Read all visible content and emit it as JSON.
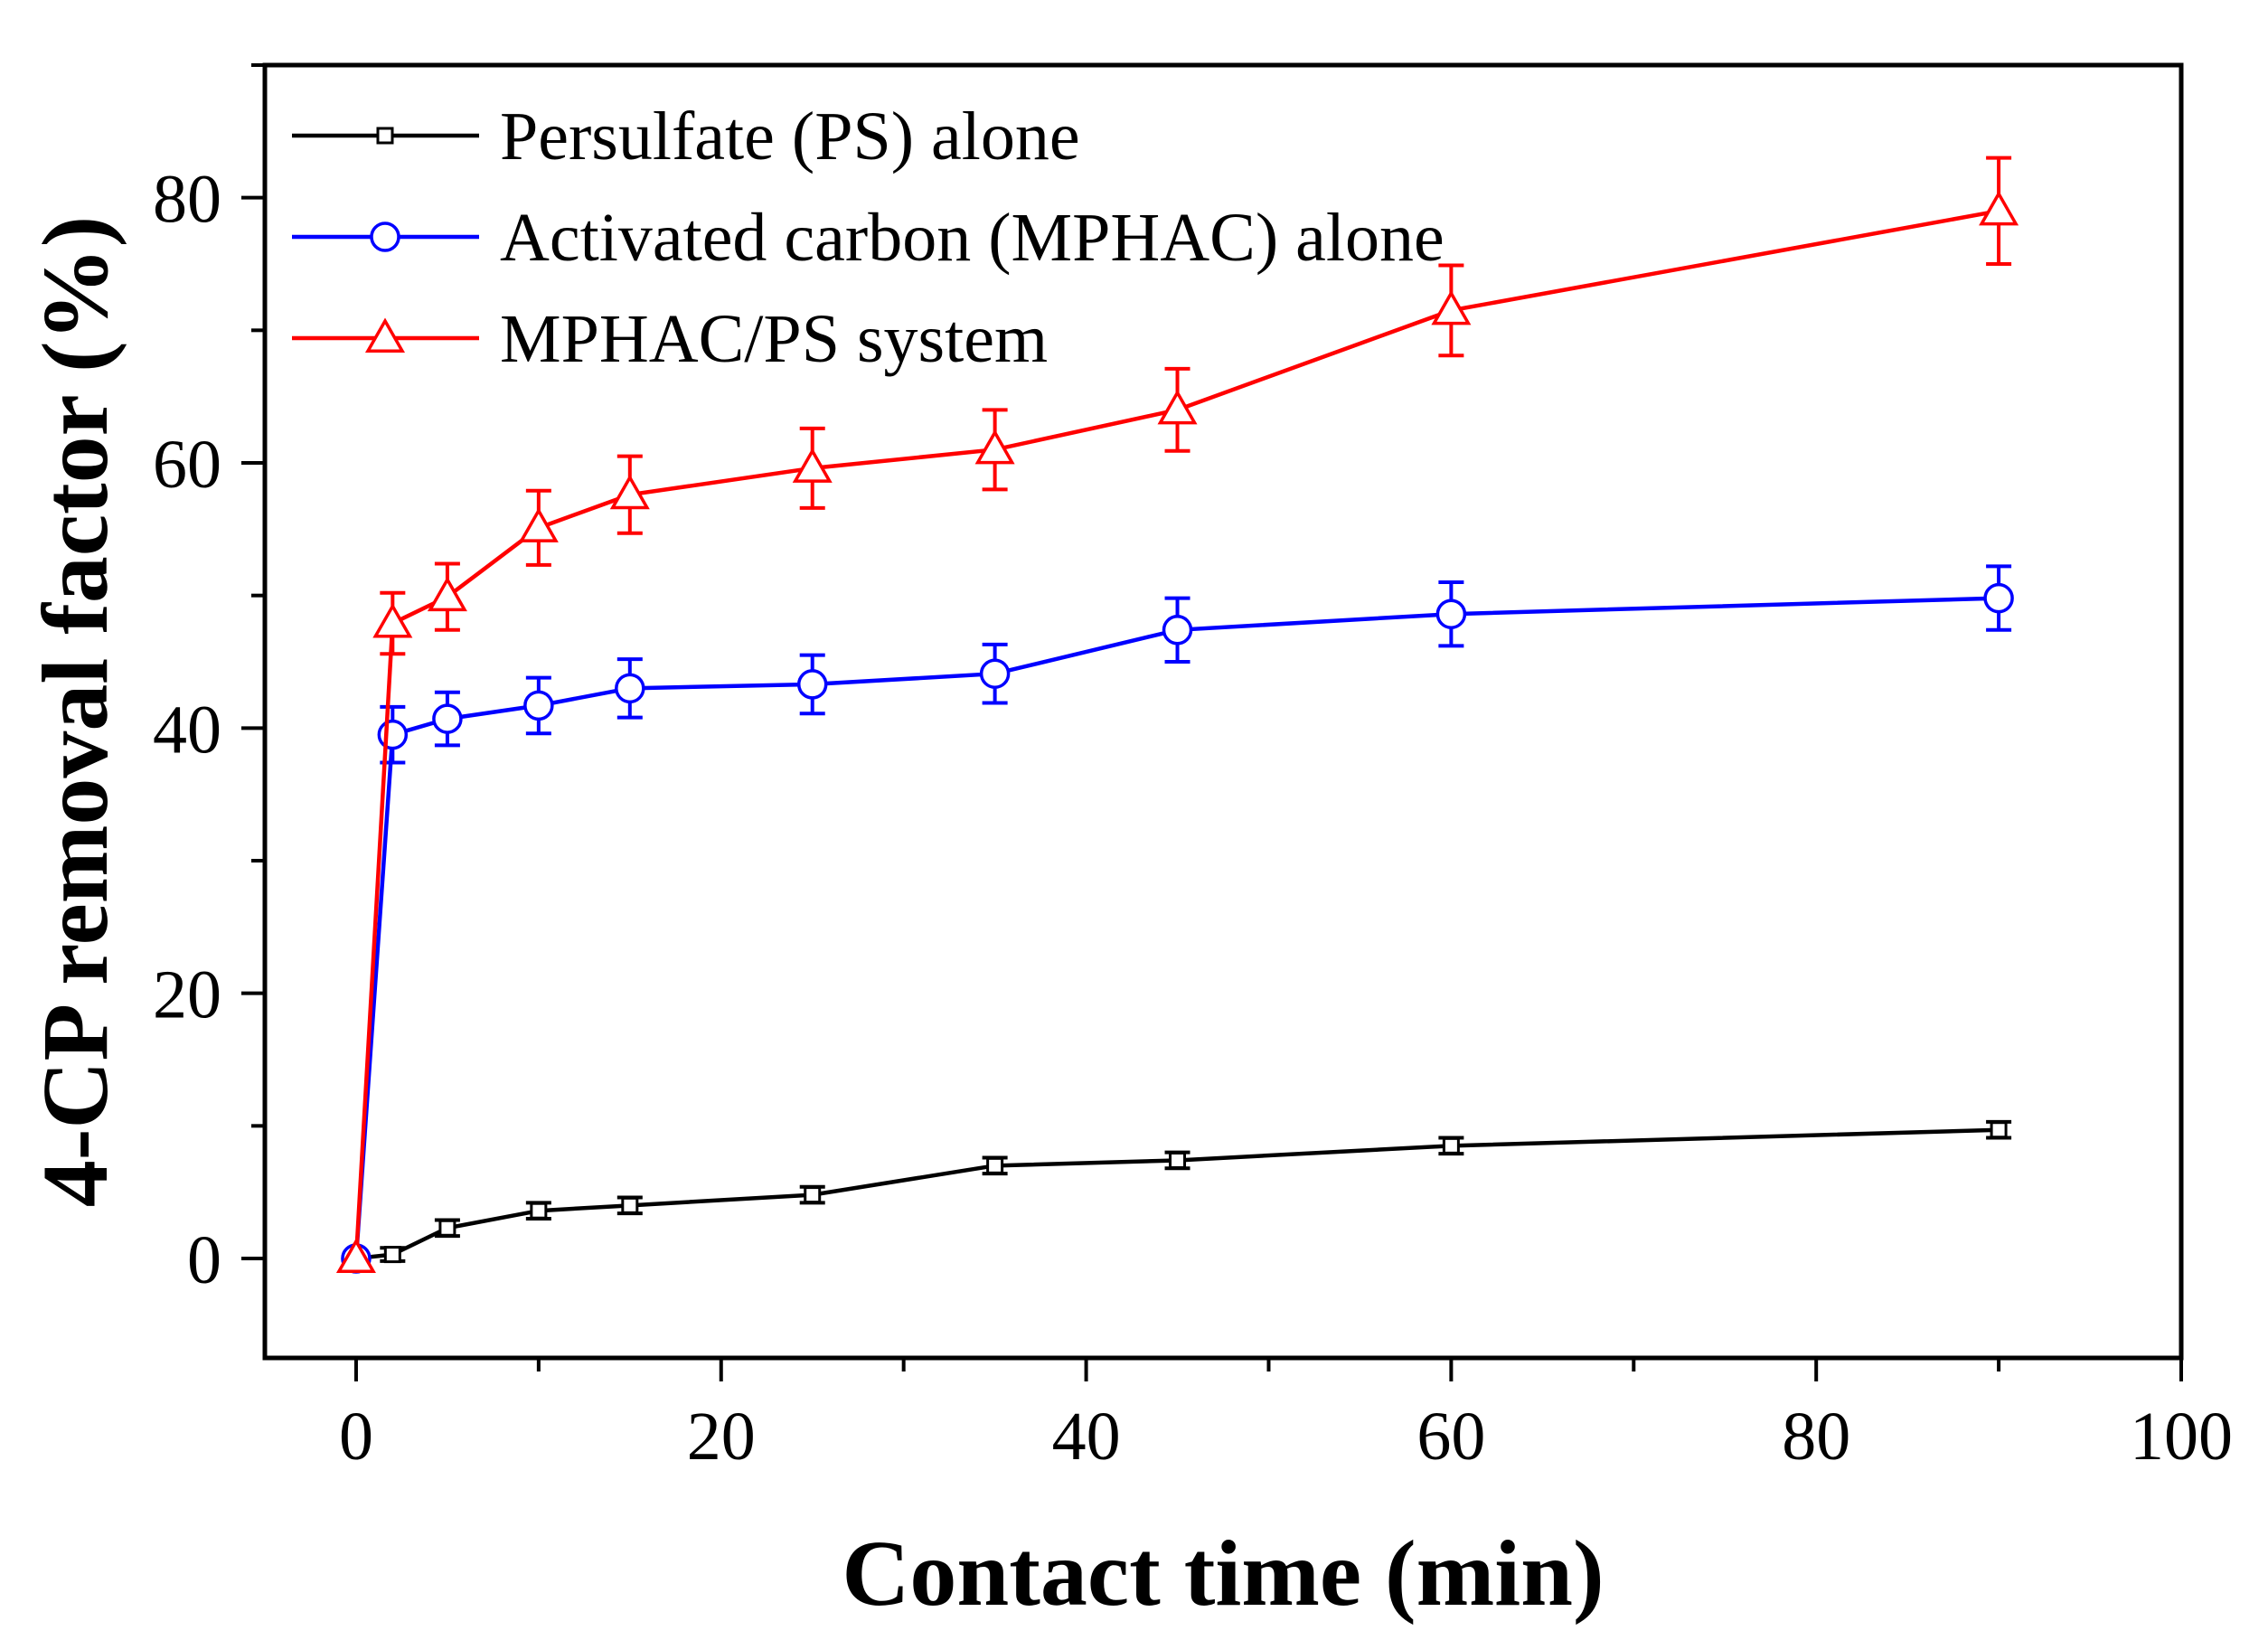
{
  "chart_data": {
    "type": "line",
    "title": "",
    "xlabel": "Contact time (min)",
    "ylabel": "4-CP removal factor (%)",
    "xlim": [
      -5,
      100
    ],
    "ylim": [
      -7.5,
      90
    ],
    "xticks": [
      0,
      20,
      40,
      60,
      80,
      100
    ],
    "yticks": [
      0,
      20,
      40,
      60,
      80
    ],
    "x_minor_step": 10,
    "y_minor_step": 10,
    "legend_position": "top-left",
    "series": [
      {
        "name": "Persulfate (PS) alone",
        "color": "#000000",
        "marker": "square",
        "x": [
          0,
          2,
          5,
          10,
          15,
          25,
          35,
          45,
          60,
          90
        ],
        "y": [
          0,
          0.3,
          2.3,
          3.6,
          4.0,
          4.8,
          7.0,
          7.4,
          8.5,
          9.7
        ],
        "err": [
          0.3,
          0.5,
          0.6,
          0.6,
          0.6,
          0.6,
          0.6,
          0.6,
          0.6,
          0.6
        ]
      },
      {
        "name": "Activated carbon (MPHAC) alone",
        "color": "#0000ff",
        "marker": "circle",
        "x": [
          0,
          2,
          5,
          10,
          15,
          25,
          35,
          45,
          60,
          90
        ],
        "y": [
          0,
          39.5,
          40.7,
          41.7,
          43.0,
          43.3,
          44.1,
          47.4,
          48.6,
          49.8
        ],
        "err": [
          0,
          2.1,
          2.0,
          2.1,
          2.2,
          2.2,
          2.2,
          2.4,
          2.4,
          2.4
        ]
      },
      {
        "name": "MPHAC/PS system",
        "color": "#ff0000",
        "marker": "triangle",
        "x": [
          0,
          2,
          5,
          10,
          15,
          25,
          35,
          45,
          60,
          90
        ],
        "y": [
          0,
          47.9,
          49.9,
          55.1,
          57.6,
          59.6,
          61.0,
          64.0,
          71.5,
          79.0
        ],
        "err": [
          0,
          2.3,
          2.5,
          2.8,
          2.9,
          3.0,
          3.0,
          3.1,
          3.4,
          4.0
        ]
      }
    ]
  }
}
